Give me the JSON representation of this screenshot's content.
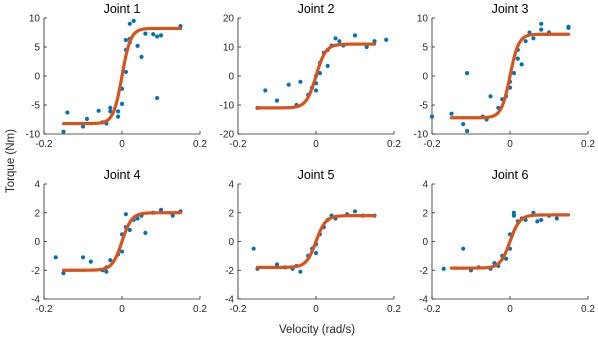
{
  "figure": {
    "xlabel": "Velocity (rad/s)",
    "ylabel": "Torque (Nm)"
  },
  "colors": {
    "points": "#0072BD",
    "fit": "#D95319"
  },
  "chart_data": [
    {
      "type": "scatter",
      "title": "Joint 1",
      "xlim": [
        -0.2,
        0.2
      ],
      "ylim": [
        -10,
        10
      ],
      "xticks": [
        "-0.2",
        "0",
        "0.2"
      ],
      "yticks": [
        "10",
        "5",
        "0",
        "-5",
        "-10"
      ],
      "xtick_values": [
        -0.2,
        0,
        0.2
      ],
      "ytick_values": [
        10,
        5,
        0,
        -5,
        -10
      ],
      "fit": {
        "amplitude": 8.2,
        "slope": 45
      },
      "points": [
        [
          -0.15,
          -9.6
        ],
        [
          -0.14,
          -6.3
        ],
        [
          -0.1,
          -8.7
        ],
        [
          -0.09,
          -7.4
        ],
        [
          -0.06,
          -6.0
        ],
        [
          -0.05,
          -8.0
        ],
        [
          -0.04,
          -8.2
        ],
        [
          -0.03,
          -6.1
        ],
        [
          -0.03,
          -5.5
        ],
        [
          -0.01,
          -7.0
        ],
        [
          -0.01,
          -6.1
        ],
        [
          0.0,
          -4.8
        ],
        [
          0.0,
          -2.2
        ],
        [
          0.01,
          0.7
        ],
        [
          0.01,
          4.5
        ],
        [
          0.01,
          6.2
        ],
        [
          0.02,
          6.4
        ],
        [
          0.02,
          5.8
        ],
        [
          0.02,
          9.0
        ],
        [
          0.03,
          9.5
        ],
        [
          0.04,
          5.2
        ],
        [
          0.05,
          3.3
        ],
        [
          0.06,
          7.3
        ],
        [
          0.08,
          7.2
        ],
        [
          0.09,
          6.8
        ],
        [
          0.1,
          7.0
        ],
        [
          0.09,
          -3.8
        ],
        [
          0.15,
          8.6
        ]
      ]
    },
    {
      "type": "scatter",
      "title": "Joint 2",
      "xlim": [
        -0.2,
        0.2
      ],
      "ylim": [
        -20,
        20
      ],
      "xticks": [
        "-0.2",
        "0",
        "0.2"
      ],
      "yticks": [
        "20",
        "10",
        "0",
        "-10",
        "-20"
      ],
      "xtick_values": [
        -0.2,
        0,
        0.2
      ],
      "ytick_values": [
        20,
        10,
        0,
        -10,
        -20
      ],
      "fit": {
        "amplitude": 11,
        "slope": 40
      },
      "points": [
        [
          -0.15,
          -11.0
        ],
        [
          -0.13,
          -5.0
        ],
        [
          -0.1,
          -8.5
        ],
        [
          -0.07,
          -3.0
        ],
        [
          -0.05,
          -10.0
        ],
        [
          -0.04,
          -2.0
        ],
        [
          -0.02,
          -6.5
        ],
        [
          -0.01,
          -4.0
        ],
        [
          0.0,
          -5.0
        ],
        [
          0.0,
          -2.5
        ],
        [
          0.0,
          0.0
        ],
        [
          0.01,
          1.0
        ],
        [
          0.01,
          4.5
        ],
        [
          0.02,
          8.0
        ],
        [
          0.03,
          9.0
        ],
        [
          0.03,
          3.5
        ],
        [
          0.04,
          10.5
        ],
        [
          0.05,
          13.0
        ],
        [
          0.06,
          12.0
        ],
        [
          0.07,
          10.5
        ],
        [
          0.1,
          14.0
        ],
        [
          0.13,
          10.0
        ],
        [
          0.15,
          12.0
        ],
        [
          0.18,
          12.5
        ]
      ]
    },
    {
      "type": "scatter",
      "title": "Joint 3",
      "xlim": [
        -0.2,
        0.2
      ],
      "ylim": [
        -10,
        10
      ],
      "xticks": [
        "-0.2",
        "0",
        "0.2"
      ],
      "yticks": [
        "10",
        "5",
        "0",
        "-5",
        "-10"
      ],
      "xtick_values": [
        -0.2,
        0,
        0.2
      ],
      "ytick_values": [
        10,
        5,
        0,
        -5,
        -10
      ],
      "fit": {
        "amplitude": 7.2,
        "slope": 45
      },
      "points": [
        [
          -0.2,
          -7.0
        ],
        [
          -0.15,
          -6.5
        ],
        [
          -0.12,
          -8.3
        ],
        [
          -0.11,
          -9.5
        ],
        [
          -0.11,
          0.5
        ],
        [
          -0.07,
          -7.0
        ],
        [
          -0.06,
          -7.5
        ],
        [
          -0.05,
          -3.5
        ],
        [
          -0.03,
          -5.5
        ],
        [
          -0.02,
          -4.0
        ],
        [
          -0.01,
          -3.5
        ],
        [
          0.0,
          -2.0
        ],
        [
          0.0,
          -1.0
        ],
        [
          0.01,
          0.5
        ],
        [
          0.02,
          4.5
        ],
        [
          0.02,
          3.0
        ],
        [
          0.03,
          2.0
        ],
        [
          0.04,
          6.0
        ],
        [
          0.05,
          7.5
        ],
        [
          0.06,
          6.5
        ],
        [
          0.08,
          8.0
        ],
        [
          0.08,
          9.0
        ],
        [
          0.1,
          7.5
        ],
        [
          0.15,
          8.5
        ],
        [
          0.15,
          8.3
        ]
      ]
    },
    {
      "type": "scatter",
      "title": "Joint 4",
      "xlim": [
        -0.2,
        0.2
      ],
      "ylim": [
        -4,
        4
      ],
      "xticks": [
        "-0.2",
        "0",
        "0.2"
      ],
      "yticks": [
        "4",
        "2",
        "0",
        "-2",
        "-4"
      ],
      "xtick_values": [
        -0.2,
        0,
        0.2
      ],
      "ytick_values": [
        4,
        2,
        0,
        -2,
        -4
      ],
      "fit": {
        "amplitude": 2.0,
        "slope": 40
      },
      "points": [
        [
          -0.17,
          -1.1
        ],
        [
          -0.15,
          -2.2
        ],
        [
          -0.1,
          -1.1
        ],
        [
          -0.08,
          -1.4
        ],
        [
          -0.05,
          -2.0
        ],
        [
          -0.04,
          -2.1
        ],
        [
          -0.04,
          -1.8
        ],
        [
          -0.03,
          -1.3
        ],
        [
          -0.01,
          -0.9
        ],
        [
          0.0,
          -0.7
        ],
        [
          0.0,
          0.5
        ],
        [
          0.01,
          1.0
        ],
        [
          0.01,
          1.9
        ],
        [
          0.02,
          0.8
        ],
        [
          0.03,
          1.5
        ],
        [
          0.04,
          1.6
        ],
        [
          0.05,
          1.8
        ],
        [
          0.06,
          0.6
        ],
        [
          0.08,
          2.0
        ],
        [
          0.1,
          2.2
        ],
        [
          0.13,
          1.8
        ],
        [
          0.15,
          2.1
        ]
      ]
    },
    {
      "type": "scatter",
      "title": "Joint 5",
      "xlim": [
        -0.2,
        0.2
      ],
      "ylim": [
        -4,
        4
      ],
      "xticks": [
        "-0.2",
        "0",
        "0.2"
      ],
      "yticks": [
        "4",
        "2",
        "0",
        "-2",
        "-4"
      ],
      "xtick_values": [
        -0.2,
        0,
        0.2
      ],
      "ytick_values": [
        4,
        2,
        0,
        -2,
        -4
      ],
      "fit": {
        "amplitude": 1.8,
        "slope": 40
      },
      "points": [
        [
          -0.16,
          -0.5
        ],
        [
          -0.15,
          -1.9
        ],
        [
          -0.1,
          -1.6
        ],
        [
          -0.08,
          -1.8
        ],
        [
          -0.06,
          -1.9
        ],
        [
          -0.05,
          -1.7
        ],
        [
          -0.04,
          -2.1
        ],
        [
          -0.02,
          -1.0
        ],
        [
          -0.01,
          -0.5
        ],
        [
          0.0,
          -0.8
        ],
        [
          0.0,
          -0.2
        ],
        [
          0.01,
          0.5
        ],
        [
          0.02,
          1.0
        ],
        [
          0.03,
          1.5
        ],
        [
          0.04,
          1.8
        ],
        [
          0.05,
          1.6
        ],
        [
          0.08,
          1.9
        ],
        [
          0.1,
          2.1
        ],
        [
          0.12,
          1.8
        ],
        [
          0.15,
          1.8
        ]
      ]
    },
    {
      "type": "scatter",
      "title": "Joint 6",
      "xlim": [
        -0.2,
        0.2
      ],
      "ylim": [
        -4,
        4
      ],
      "xticks": [
        "-0.2",
        "0",
        "0.2"
      ],
      "yticks": [
        "4",
        "2",
        "0",
        "-2",
        "-4"
      ],
      "xtick_values": [
        -0.2,
        0,
        0.2
      ],
      "ytick_values": [
        4,
        2,
        0,
        -2,
        -4
      ],
      "fit": {
        "amplitude": 1.85,
        "slope": 40
      },
      "points": [
        [
          -0.17,
          -1.9
        ],
        [
          -0.12,
          -0.5
        ],
        [
          -0.1,
          -2.0
        ],
        [
          -0.08,
          -1.8
        ],
        [
          -0.05,
          -1.9
        ],
        [
          -0.04,
          -1.5
        ],
        [
          -0.03,
          -1.7
        ],
        [
          -0.02,
          -1.0
        ],
        [
          -0.01,
          -1.2
        ],
        [
          0.0,
          -0.5
        ],
        [
          0.0,
          0.5
        ],
        [
          0.01,
          1.8
        ],
        [
          0.01,
          2.0
        ],
        [
          0.02,
          1.4
        ],
        [
          0.03,
          1.6
        ],
        [
          0.04,
          1.5
        ],
        [
          0.06,
          2.0
        ],
        [
          0.07,
          1.4
        ],
        [
          0.08,
          1.5
        ],
        [
          0.1,
          1.8
        ],
        [
          0.12,
          1.6
        ]
      ]
    }
  ]
}
